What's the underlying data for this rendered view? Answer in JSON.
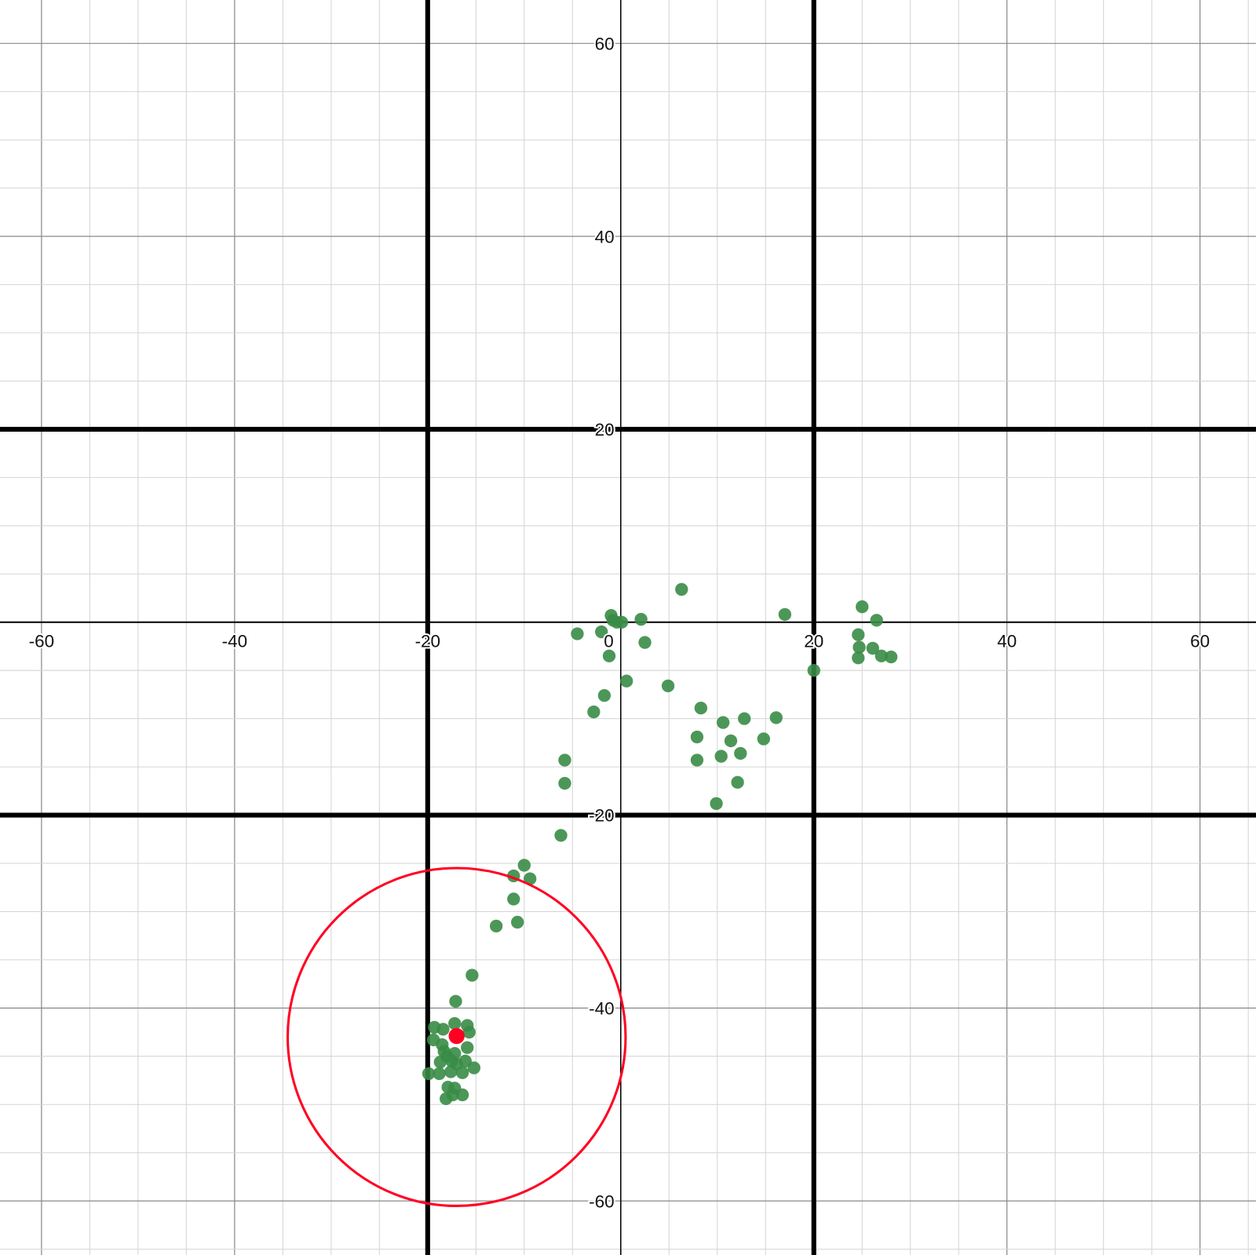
{
  "chart_data": {
    "type": "scatter",
    "xlim": [
      -64.3,
      65.8
    ],
    "ylim": [
      -65.6,
      64.5
    ],
    "grid": true,
    "minor_grid_step": 5,
    "major_grid_step": 20,
    "x_tick_labels": [
      "-60",
      "-40",
      "-20",
      "0",
      "20",
      "40",
      "60"
    ],
    "x_tick_values": [
      -60,
      -40,
      -20,
      0,
      20,
      40,
      60
    ],
    "y_tick_labels": [
      "60",
      "40",
      "20",
      "-20",
      "-40",
      "-60"
    ],
    "y_tick_values": [
      60,
      40,
      20,
      -20,
      -40,
      -60
    ],
    "vertical_lines": [
      -20,
      20
    ],
    "horizontal_lines": [
      20,
      -20
    ],
    "line_color": "#000000",
    "point_color": "#388c46",
    "highlight_color": "#ff0022",
    "points": [
      [
        6.3,
        3.4
      ],
      [
        -1.0,
        0.7
      ],
      [
        -0.8,
        0.2
      ],
      [
        -0.4,
        0.0
      ],
      [
        0.1,
        0.0
      ],
      [
        2.1,
        0.3
      ],
      [
        17.0,
        0.8
      ],
      [
        25.0,
        1.6
      ],
      [
        26.5,
        0.2
      ],
      [
        -4.5,
        -1.2
      ],
      [
        -2.0,
        -1.0
      ],
      [
        2.5,
        -2.1
      ],
      [
        -1.2,
        -3.5
      ],
      [
        24.6,
        -1.3
      ],
      [
        24.7,
        -2.6
      ],
      [
        26.1,
        -2.7
      ],
      [
        27.0,
        -3.5
      ],
      [
        28.0,
        -3.6
      ],
      [
        24.6,
        -3.7
      ],
      [
        20.0,
        -5.0
      ],
      [
        0.6,
        -6.1
      ],
      [
        4.9,
        -6.6
      ],
      [
        -1.7,
        -7.6
      ],
      [
        -2.8,
        -9.3
      ],
      [
        8.3,
        -8.9
      ],
      [
        10.6,
        -10.4
      ],
      [
        12.8,
        -10.0
      ],
      [
        16.1,
        -9.9
      ],
      [
        7.9,
        -11.9
      ],
      [
        11.4,
        -12.3
      ],
      [
        14.8,
        -12.1
      ],
      [
        -5.8,
        -14.3
      ],
      [
        7.9,
        -14.3
      ],
      [
        10.4,
        -13.9
      ],
      [
        12.4,
        -13.6
      ],
      [
        -5.8,
        -16.7
      ],
      [
        12.1,
        -16.6
      ],
      [
        9.9,
        -18.8
      ],
      [
        -6.2,
        -22.1
      ],
      [
        -10.0,
        -25.2
      ],
      [
        -11.1,
        -26.3
      ],
      [
        -9.4,
        -26.6
      ],
      [
        -11.1,
        -28.7
      ],
      [
        -10.7,
        -31.1
      ],
      [
        -12.9,
        -31.5
      ],
      [
        -15.4,
        -36.6
      ],
      [
        -17.1,
        -39.3
      ],
      [
        -19.3,
        -42.0
      ],
      [
        -18.4,
        -42.2
      ],
      [
        -17.2,
        -41.6
      ],
      [
        -15.9,
        -41.8
      ],
      [
        -15.7,
        -42.5
      ],
      [
        -19.4,
        -43.3
      ],
      [
        -15.9,
        -44.1
      ],
      [
        -18.3,
        -44.5
      ],
      [
        -17.2,
        -44.7
      ],
      [
        -18.7,
        -45.6
      ],
      [
        -17.5,
        -45.5
      ],
      [
        -16.1,
        -45.5
      ],
      [
        -15.2,
        -46.2
      ],
      [
        -19.9,
        -46.8
      ],
      [
        -18.8,
        -46.8
      ],
      [
        -17.6,
        -46.6
      ],
      [
        -16.4,
        -46.7
      ],
      [
        -17.9,
        -48.2
      ],
      [
        -17.2,
        -48.3
      ],
      [
        -16.4,
        -49.0
      ],
      [
        -18.1,
        -49.4
      ],
      [
        -17.4,
        -49.0
      ],
      [
        -18.0,
        -45.0
      ],
      [
        -17.0,
        -45.8
      ],
      [
        -18.5,
        -43.8
      ]
    ],
    "highlight_point": [
      -17.0,
      -42.9
    ],
    "circle": {
      "center": [
        -17.0,
        -43.0
      ],
      "radius": 17.5
    }
  }
}
